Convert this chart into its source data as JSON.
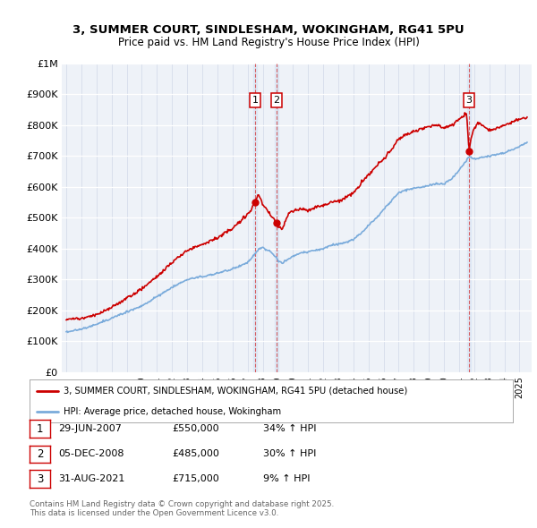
{
  "title1": "3, SUMMER COURT, SINDLESHAM, WOKINGHAM, RG41 5PU",
  "title2": "Price paid vs. HM Land Registry's House Price Index (HPI)",
  "background_color": "#ffffff",
  "plot_bg_color": "#eef2f8",
  "red_color": "#cc0000",
  "blue_color": "#7aabdb",
  "transactions": [
    {
      "num": 1,
      "date_label": "29-JUN-2007",
      "price": 550000,
      "pct": "34%",
      "x": 2007.49
    },
    {
      "num": 2,
      "date_label": "05-DEC-2008",
      "price": 485000,
      "pct": "30%",
      "x": 2008.92
    },
    {
      "num": 3,
      "date_label": "31-AUG-2021",
      "price": 715000,
      "pct": "9%",
      "x": 2021.66
    }
  ],
  "legend_line1": "3, SUMMER COURT, SINDLESHAM, WOKINGHAM, RG41 5PU (detached house)",
  "legend_line2": "HPI: Average price, detached house, Wokingham",
  "footnote1": "Contains HM Land Registry data © Crown copyright and database right 2025.",
  "footnote2": "This data is licensed under the Open Government Licence v3.0.",
  "yticks": [
    0,
    100000,
    200000,
    300000,
    400000,
    500000,
    600000,
    700000,
    800000,
    900000,
    1000000
  ],
  "ylabels": [
    "£0",
    "£100K",
    "£200K",
    "£300K",
    "£400K",
    "£500K",
    "£600K",
    "£700K",
    "£800K",
    "£900K",
    "£1M"
  ],
  "xmin": 1994.7,
  "xmax": 2025.8,
  "ymin": 0,
  "ymax": 1000000,
  "red_keypoints": [
    [
      1995.0,
      172000
    ],
    [
      1996.0,
      174000
    ],
    [
      1997.0,
      185000
    ],
    [
      1998.0,
      210000
    ],
    [
      1999.0,
      240000
    ],
    [
      2000.0,
      270000
    ],
    [
      2001.0,
      310000
    ],
    [
      2002.0,
      355000
    ],
    [
      2003.0,
      395000
    ],
    [
      2004.0,
      415000
    ],
    [
      2005.0,
      435000
    ],
    [
      2006.0,
      465000
    ],
    [
      2007.0,
      510000
    ],
    [
      2007.49,
      550000
    ],
    [
      2007.7,
      575000
    ],
    [
      2007.9,
      560000
    ],
    [
      2008.0,
      540000
    ],
    [
      2008.5,
      510000
    ],
    [
      2008.92,
      485000
    ],
    [
      2009.0,
      470000
    ],
    [
      2009.3,
      465000
    ],
    [
      2009.5,
      490000
    ],
    [
      2009.8,
      520000
    ],
    [
      2010.0,
      520000
    ],
    [
      2010.5,
      530000
    ],
    [
      2011.0,
      525000
    ],
    [
      2011.5,
      535000
    ],
    [
      2012.0,
      540000
    ],
    [
      2012.5,
      550000
    ],
    [
      2013.0,
      555000
    ],
    [
      2013.5,
      565000
    ],
    [
      2014.0,
      580000
    ],
    [
      2014.5,
      610000
    ],
    [
      2015.0,
      640000
    ],
    [
      2015.5,
      665000
    ],
    [
      2016.0,
      690000
    ],
    [
      2016.5,
      720000
    ],
    [
      2017.0,
      755000
    ],
    [
      2017.5,
      770000
    ],
    [
      2018.0,
      780000
    ],
    [
      2018.5,
      790000
    ],
    [
      2019.0,
      795000
    ],
    [
      2019.5,
      800000
    ],
    [
      2020.0,
      790000
    ],
    [
      2020.5,
      800000
    ],
    [
      2021.0,
      820000
    ],
    [
      2021.5,
      840000
    ],
    [
      2021.66,
      715000
    ],
    [
      2021.8,
      760000
    ],
    [
      2022.0,
      790000
    ],
    [
      2022.3,
      810000
    ],
    [
      2022.5,
      800000
    ],
    [
      2023.0,
      785000
    ],
    [
      2023.5,
      790000
    ],
    [
      2024.0,
      800000
    ],
    [
      2024.5,
      810000
    ],
    [
      2025.0,
      820000
    ],
    [
      2025.5,
      825000
    ]
  ],
  "blue_keypoints": [
    [
      1995.0,
      130000
    ],
    [
      1996.0,
      140000
    ],
    [
      1997.0,
      155000
    ],
    [
      1998.0,
      175000
    ],
    [
      1999.0,
      195000
    ],
    [
      2000.0,
      215000
    ],
    [
      2001.0,
      245000
    ],
    [
      2002.0,
      275000
    ],
    [
      2003.0,
      300000
    ],
    [
      2004.0,
      310000
    ],
    [
      2005.0,
      320000
    ],
    [
      2006.0,
      335000
    ],
    [
      2007.0,
      355000
    ],
    [
      2007.5,
      385000
    ],
    [
      2007.8,
      400000
    ],
    [
      2008.0,
      405000
    ],
    [
      2008.5,
      390000
    ],
    [
      2008.92,
      370000
    ],
    [
      2009.0,
      360000
    ],
    [
      2009.3,
      355000
    ],
    [
      2009.5,
      360000
    ],
    [
      2009.8,
      370000
    ],
    [
      2010.0,
      375000
    ],
    [
      2010.5,
      385000
    ],
    [
      2011.0,
      390000
    ],
    [
      2011.5,
      395000
    ],
    [
      2012.0,
      400000
    ],
    [
      2012.5,
      410000
    ],
    [
      2013.0,
      415000
    ],
    [
      2013.5,
      420000
    ],
    [
      2014.0,
      430000
    ],
    [
      2014.5,
      450000
    ],
    [
      2015.0,
      475000
    ],
    [
      2015.5,
      500000
    ],
    [
      2016.0,
      525000
    ],
    [
      2016.5,
      555000
    ],
    [
      2017.0,
      580000
    ],
    [
      2017.5,
      590000
    ],
    [
      2018.0,
      595000
    ],
    [
      2018.5,
      600000
    ],
    [
      2019.0,
      605000
    ],
    [
      2019.5,
      610000
    ],
    [
      2020.0,
      610000
    ],
    [
      2020.5,
      625000
    ],
    [
      2021.0,
      655000
    ],
    [
      2021.5,
      685000
    ],
    [
      2021.66,
      700000
    ],
    [
      2021.8,
      695000
    ],
    [
      2022.0,
      690000
    ],
    [
      2022.5,
      695000
    ],
    [
      2023.0,
      700000
    ],
    [
      2023.5,
      705000
    ],
    [
      2024.0,
      710000
    ],
    [
      2024.5,
      720000
    ],
    [
      2025.0,
      730000
    ],
    [
      2025.5,
      745000
    ]
  ]
}
